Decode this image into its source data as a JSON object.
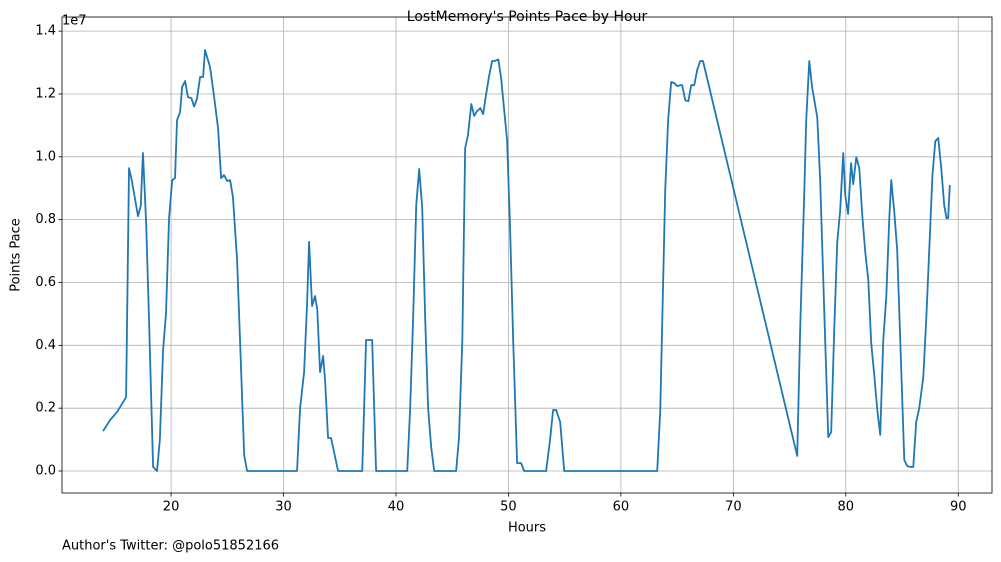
{
  "chart_data": {
    "type": "line",
    "title": "LostMemory's Points Pace by Hour",
    "x_label": "Hours",
    "y_label": "Points Pace",
    "y_offset_label": "1e7",
    "footer": "Author's Twitter: @polo51852166",
    "color": "#1f77b4",
    "grid": true,
    "xlim": [
      10.3,
      93.0
    ],
    "ylim": [
      -700000,
      14450000
    ],
    "xticks": [
      20,
      30,
      40,
      50,
      60,
      70,
      80,
      90
    ],
    "yticks": [
      {
        "value": 0,
        "label": "0.0"
      },
      {
        "value": 2000000,
        "label": "0.2"
      },
      {
        "value": 4000000,
        "label": "0.4"
      },
      {
        "value": 6000000,
        "label": "0.6"
      },
      {
        "value": 8000000,
        "label": "0.8"
      },
      {
        "value": 10000000,
        "label": "1.0"
      },
      {
        "value": 12000000,
        "label": "1.2"
      },
      {
        "value": 14000000,
        "label": "1.4"
      }
    ],
    "x": [
      13.95,
      14.57,
      15.2,
      16.0,
      16.26,
      16.5,
      17.06,
      17.3,
      17.5,
      17.78,
      18.04,
      18.4,
      18.75,
      19.0,
      19.29,
      19.55,
      19.82,
      20.1,
      20.35,
      20.53,
      20.8,
      20.98,
      21.25,
      21.5,
      21.8,
      22.05,
      22.3,
      22.58,
      22.85,
      23.02,
      23.47,
      23.83,
      24.18,
      24.45,
      24.7,
      25.0,
      25.25,
      25.5,
      25.87,
      26.14,
      26.5,
      26.76,
      31.2,
      31.47,
      31.83,
      32.1,
      32.27,
      32.54,
      32.8,
      33.0,
      33.25,
      33.52,
      33.7,
      33.96,
      34.23,
      34.85,
      37.0,
      37.34,
      37.88,
      38.23,
      41.0,
      41.26,
      41.52,
      41.8,
      42.06,
      42.33,
      42.6,
      42.86,
      43.13,
      43.4,
      45.35,
      45.6,
      45.9,
      46.15,
      46.4,
      46.7,
      46.95,
      47.2,
      47.5,
      47.75,
      48.0,
      48.28,
      48.55,
      48.8,
      49.1,
      49.35,
      49.62,
      49.88,
      50.15,
      50.42,
      50.77,
      51.13,
      51.4,
      53.35,
      53.7,
      53.97,
      54.24,
      54.6,
      54.96,
      63.23,
      63.5,
      63.94,
      64.2,
      64.47,
      64.74,
      65.0,
      65.27,
      65.45,
      65.72,
      66.0,
      66.25,
      66.52,
      66.8,
      67.05,
      67.3,
      75.68,
      75.94,
      76.3,
      76.48,
      76.75,
      77.0,
      77.46,
      77.72,
      78.08,
      78.44,
      78.7,
      78.97,
      79.24,
      79.5,
      79.77,
      79.95,
      80.2,
      80.47,
      80.66,
      80.93,
      81.2,
      81.46,
      81.73,
      82.0,
      82.26,
      82.53,
      82.8,
      83.06,
      83.33,
      83.6,
      83.86,
      84.04,
      84.3,
      84.57,
      84.84,
      85.2,
      85.46,
      85.73,
      86.0,
      86.26,
      86.53,
      86.89,
      87.15,
      87.42,
      87.7,
      87.96,
      88.22,
      88.5,
      88.75,
      88.95,
      89.1,
      89.25
    ],
    "values": [
      1270000,
      1620000,
      1880000,
      2350000,
      9640000,
      9260000,
      8110000,
      8430000,
      10120000,
      7920000,
      4800000,
      130000,
      0,
      990000,
      3850000,
      5030000,
      8050000,
      9260000,
      9320000,
      11170000,
      11420000,
      12220000,
      12410000,
      11900000,
      11870000,
      11600000,
      11840000,
      12540000,
      12540000,
      13400000,
      12850000,
      11900000,
      10900000,
      9320000,
      9420000,
      9230000,
      9260000,
      8720000,
      6710000,
      4070000,
      510000,
      0,
      0,
      2000000,
      3150000,
      5380000,
      7290000,
      5250000,
      5570000,
      5150000,
      3150000,
      3660000,
      2860000,
      1050000,
      1050000,
      0,
      0,
      4170000,
      4170000,
      0,
      0,
      2000000,
      4800000,
      8460000,
      9610000,
      8400000,
      4800000,
      1970000,
      760000,
      0,
      0,
      1050000,
      4170000,
      10280000,
      10690000,
      11680000,
      11300000,
      11450000,
      11550000,
      11360000,
      11960000,
      12570000,
      13050000,
      13050000,
      13100000,
      12500000,
      11490000,
      10530000,
      7670000,
      4170000,
      250000,
      250000,
      0,
      0,
      990000,
      1940000,
      1940000,
      1560000,
      0,
      0,
      1940000,
      8940000,
      11170000,
      12380000,
      12350000,
      12250000,
      12280000,
      12280000,
      11800000,
      11770000,
      12280000,
      12280000,
      12790000,
      13050000,
      13050000,
      480000,
      4490000,
      8780000,
      11170000,
      13050000,
      12220000,
      11260000,
      9260000,
      5120000,
      1080000,
      1240000,
      4490000,
      7290000,
      8300000,
      10120000,
      8780000,
      8180000,
      9800000,
      9130000,
      9990000,
      9640000,
      8150000,
      6970000,
      6080000,
      4070000,
      3050000,
      1940000,
      1150000,
      4170000,
      5540000,
      7990000,
      9260000,
      8300000,
      7030000,
      4170000,
      350000,
      160000,
      130000,
      130000,
      1560000,
      2000000,
      2990000,
      4800000,
      7030000,
      9390000,
      10500000,
      10600000,
      9580000,
      8460000,
      8050000,
      8050000,
      9100000
    ]
  }
}
